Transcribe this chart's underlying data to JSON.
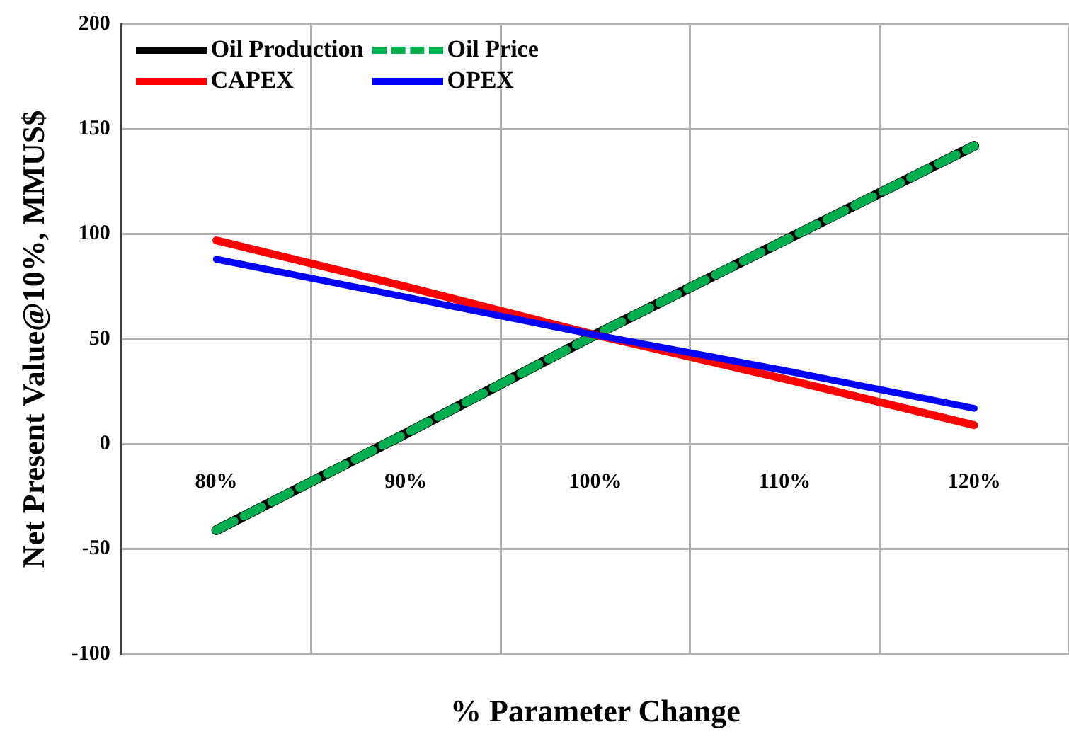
{
  "chart_data": {
    "type": "line",
    "xlabel": "% Parameter Change",
    "ylabel": "Net Present Value@10%, MMUS$",
    "categories": [
      "80%",
      "90%",
      "100%",
      "110%",
      "120%"
    ],
    "series": [
      {
        "name": "Oil Production",
        "color": "#000000",
        "values": [
          -41,
          5,
          52,
          97,
          142
        ],
        "line_style": "solid"
      },
      {
        "name": "Oil Price",
        "color": "#00b050",
        "values": [
          -41,
          5,
          52,
          97,
          142
        ],
        "line_style": "dashed"
      },
      {
        "name": "CAPEX",
        "color": "#ff0000",
        "values": [
          97,
          75,
          52,
          31,
          9
        ],
        "line_style": "solid"
      },
      {
        "name": "OPEX",
        "color": "#0000ff",
        "values": [
          88,
          70,
          52,
          35,
          17
        ],
        "line_style": "solid"
      }
    ],
    "ylim": [
      -100,
      200
    ],
    "yticks": [
      -100,
      -50,
      0,
      50,
      100,
      150,
      200
    ],
    "grid": true,
    "legend": "top left",
    "marker": "none"
  }
}
